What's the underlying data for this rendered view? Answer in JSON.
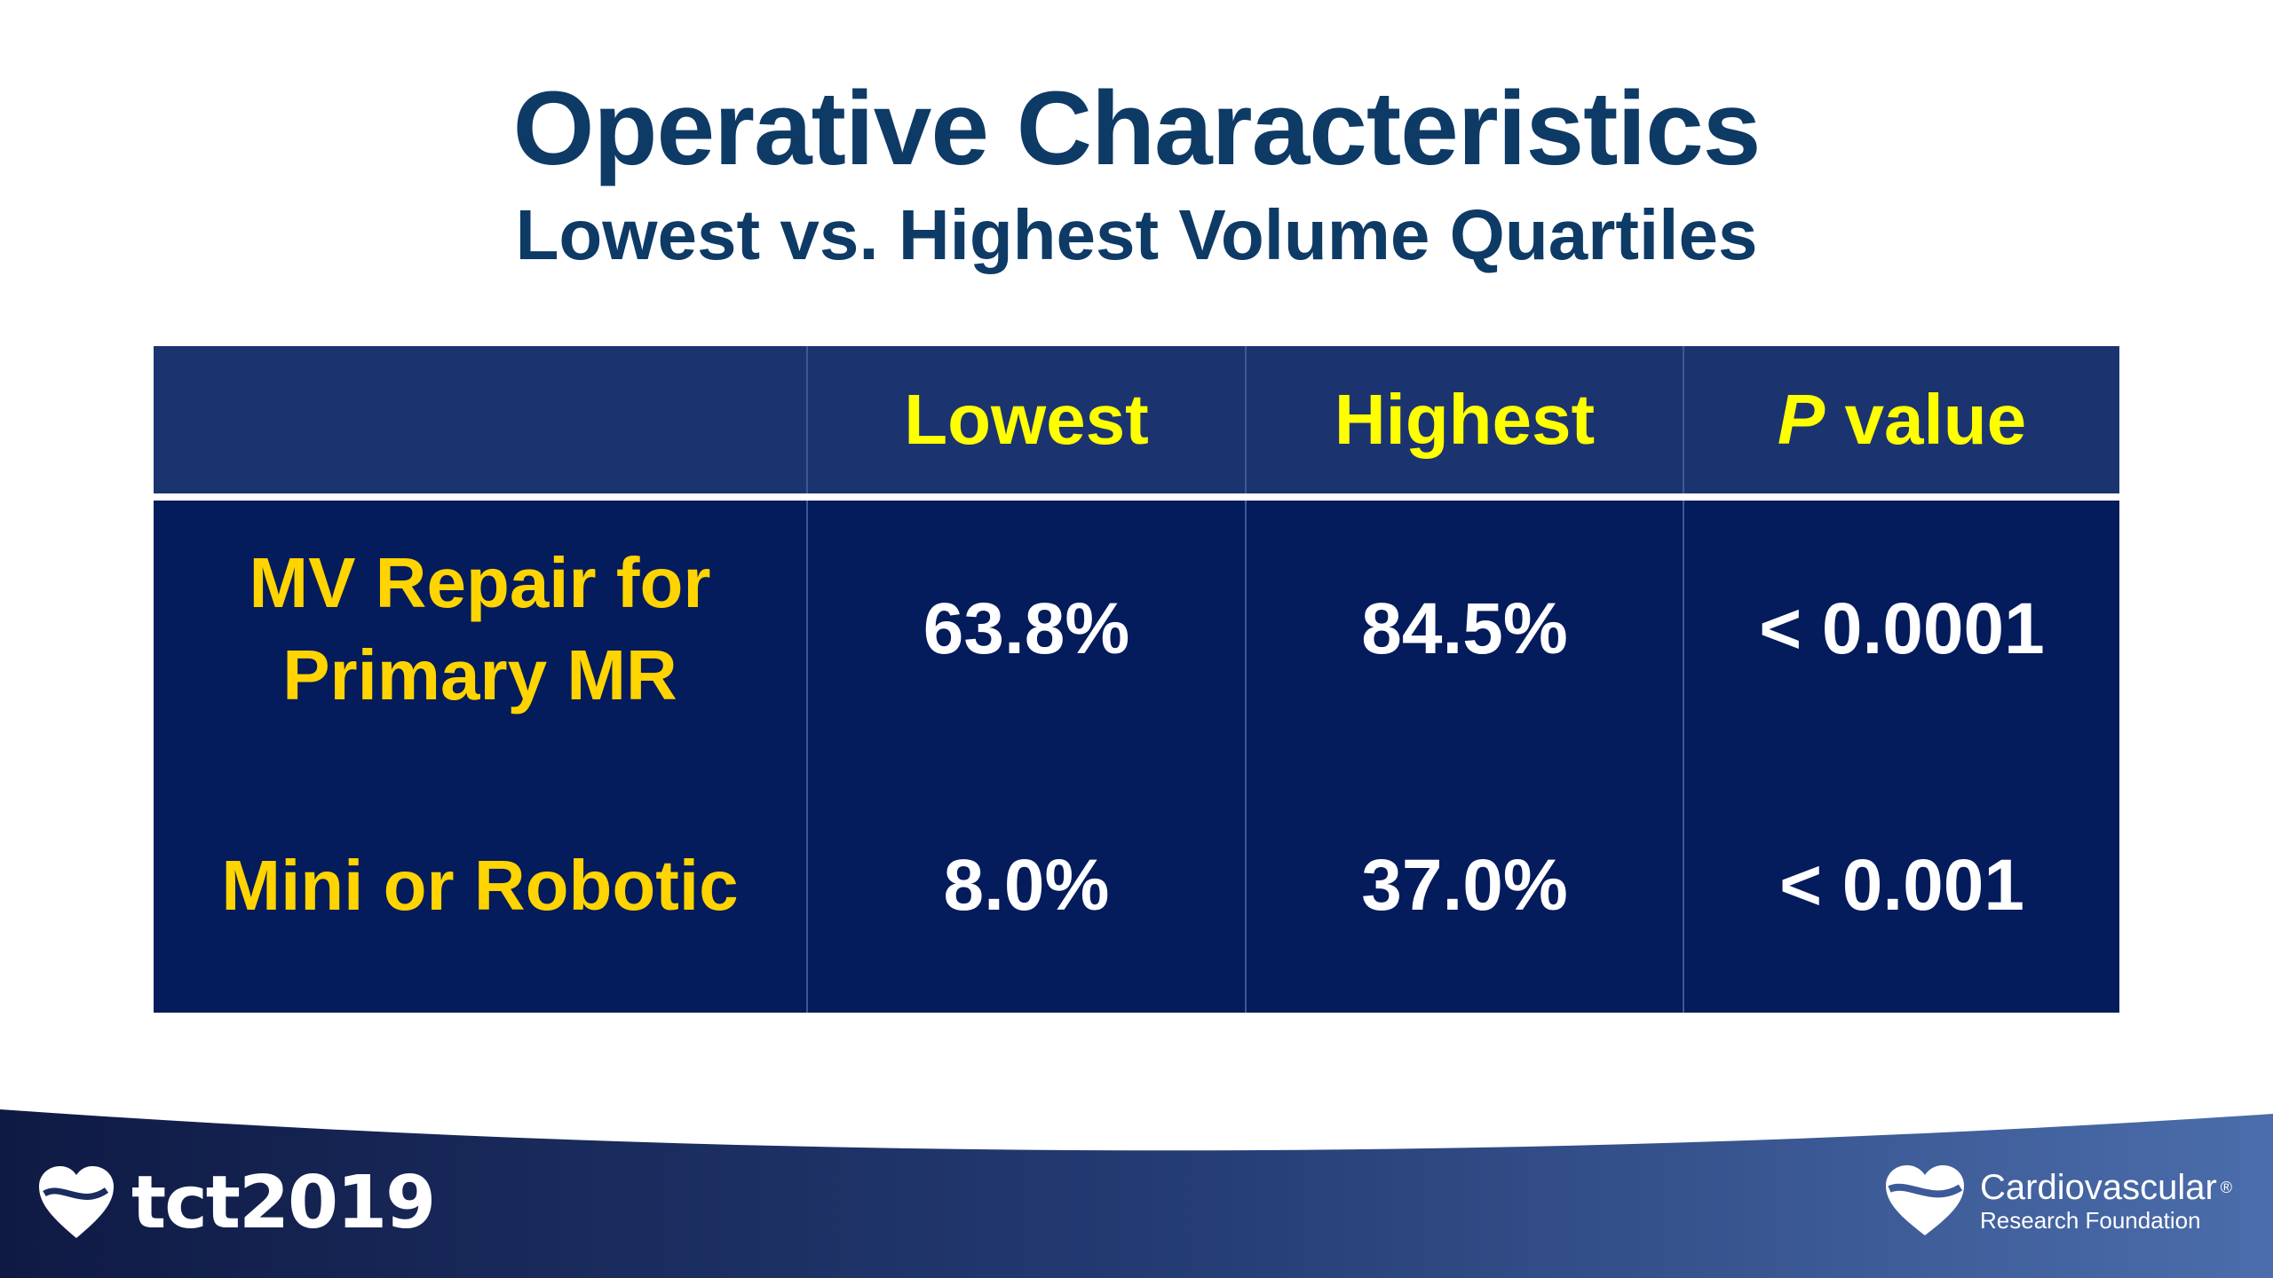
{
  "slide": {
    "title": "Operative Characteristics",
    "subtitle": "Lowest vs. Highest Volume Quartiles"
  },
  "table": {
    "columns": [
      "",
      "Lowest",
      "Highest",
      "P value"
    ],
    "p_value_italic_part": "P",
    "p_value_rest": " value",
    "rows": [
      {
        "label_line1": "MV Repair for",
        "label_line2": "Primary MR",
        "lowest": "63.8%",
        "highest": "84.5%",
        "p_value": "< 0.0001"
      },
      {
        "label_line1": "Mini or Robotic",
        "lowest": "8.0%",
        "highest": "37.0%",
        "p_value": "< 0.001"
      }
    ]
  },
  "footer": {
    "left_logo_text": "tct2019",
    "right_logo_line1": "Cardiovascular",
    "right_logo_registered": "®",
    "right_logo_line2": "Research Foundation"
  },
  "colors": {
    "title": "#0e3a66",
    "table_header_bg": "#1b3470",
    "table_body_bg": "#041b5c",
    "header_text": "#ffff00",
    "label_text": "#ffd400",
    "value_text": "#ffffff",
    "footer_gradient_start": "#0f1a44",
    "footer_gradient_end": "#4b6dab"
  },
  "icons": [
    "heart-logo-icon",
    "crf-heart-logo-icon"
  ]
}
